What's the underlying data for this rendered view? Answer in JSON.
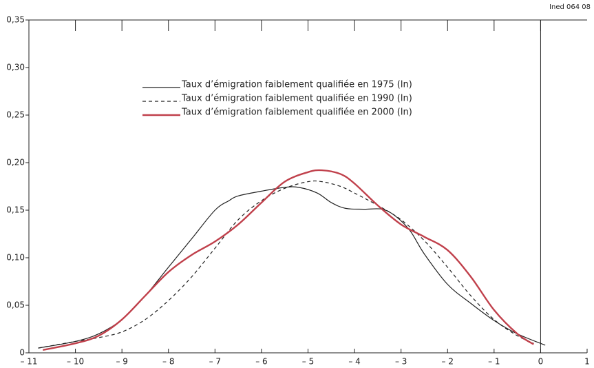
{
  "chart_data": {
    "type": "line",
    "source": "Ined 064 08",
    "xlim": [
      -11,
      1
    ],
    "ylim": [
      0,
      0.35
    ],
    "xticks": [
      {
        "value": -11,
        "label": "– 11"
      },
      {
        "value": -10,
        "label": "– 10"
      },
      {
        "value": -9,
        "label": "– 9"
      },
      {
        "value": -8,
        "label": "– 8"
      },
      {
        "value": -7,
        "label": "– 7"
      },
      {
        "value": -6,
        "label": "– 6"
      },
      {
        "value": -5,
        "label": "– 5"
      },
      {
        "value": -4,
        "label": "– 4"
      },
      {
        "value": -3,
        "label": "– 3"
      },
      {
        "value": -2,
        "label": "– 2"
      },
      {
        "value": -1,
        "label": "– 1"
      },
      0,
      1
    ],
    "yticks": [
      0,
      {
        "value": 0.05,
        "label": "0,05"
      },
      {
        "value": 0.1,
        "label": "0,10"
      },
      {
        "value": 0.15,
        "label": "0,15"
      },
      {
        "value": 0.2,
        "label": "0,20"
      },
      {
        "value": 0.25,
        "label": "0,25"
      },
      {
        "value": 0.3,
        "label": "0,30"
      },
      {
        "value": 0.35,
        "label": "0,35"
      }
    ],
    "legend": "upper center",
    "series": [
      {
        "name": "Taux d’émigration faiblement qualifiée en 1975 (ln)",
        "color": "#222222",
        "line_style": "solid",
        "line_width": 1.2,
        "x": [
          -10.8,
          -10,
          -9.5,
          -9,
          -8.5,
          -8,
          -7.5,
          -7,
          -6.7,
          -6.5,
          -6,
          -5.5,
          -5.2,
          -4.8,
          -4.5,
          -4.2,
          -3.8,
          -3.4,
          -3.1,
          -2.8,
          -2.5,
          -2,
          -1.5,
          -1,
          -0.5,
          0.1
        ],
        "values": [
          0.005,
          0.012,
          0.02,
          0.035,
          0.06,
          0.09,
          0.12,
          0.15,
          0.16,
          0.165,
          0.17,
          0.174,
          0.174,
          0.168,
          0.158,
          0.152,
          0.151,
          0.151,
          0.143,
          0.128,
          0.104,
          0.072,
          0.052,
          0.034,
          0.02,
          0.008
        ]
      },
      {
        "name": "Taux d’émigration faiblement qualifiée en 1990 (ln)",
        "color": "#222222",
        "line_style": "dashed",
        "line_width": 1.2,
        "x": [
          -10.8,
          -10,
          -9.5,
          -9,
          -8.5,
          -8,
          -7.5,
          -7,
          -6.5,
          -6,
          -5.5,
          -5,
          -4.7,
          -4.3,
          -4,
          -3.5,
          -3,
          -2.5,
          -2,
          -1.5,
          -1,
          -0.5,
          -0.15
        ],
        "values": [
          0.005,
          0.012,
          0.016,
          0.022,
          0.035,
          0.055,
          0.08,
          0.11,
          0.14,
          0.16,
          0.173,
          0.18,
          0.18,
          0.175,
          0.168,
          0.155,
          0.14,
          0.118,
          0.09,
          0.06,
          0.035,
          0.018,
          0.01
        ]
      },
      {
        "name": "Taux d’émigration faiblement qualifiée en 2000 (ln)",
        "color": "#c0404b",
        "line_style": "solid",
        "line_width": 2.4,
        "x": [
          -10.7,
          -10,
          -9.5,
          -9,
          -8.5,
          -8,
          -7.5,
          -7,
          -6.5,
          -6,
          -5.5,
          -5,
          -4.7,
          -4.3,
          -4,
          -3.5,
          -3,
          -2.5,
          -2,
          -1.5,
          -1,
          -0.5,
          -0.15
        ],
        "values": [
          0.003,
          0.01,
          0.018,
          0.035,
          0.06,
          0.085,
          0.103,
          0.117,
          0.135,
          0.158,
          0.18,
          0.19,
          0.192,
          0.188,
          0.178,
          0.155,
          0.135,
          0.122,
          0.108,
          0.08,
          0.045,
          0.02,
          0.009
        ]
      }
    ]
  }
}
